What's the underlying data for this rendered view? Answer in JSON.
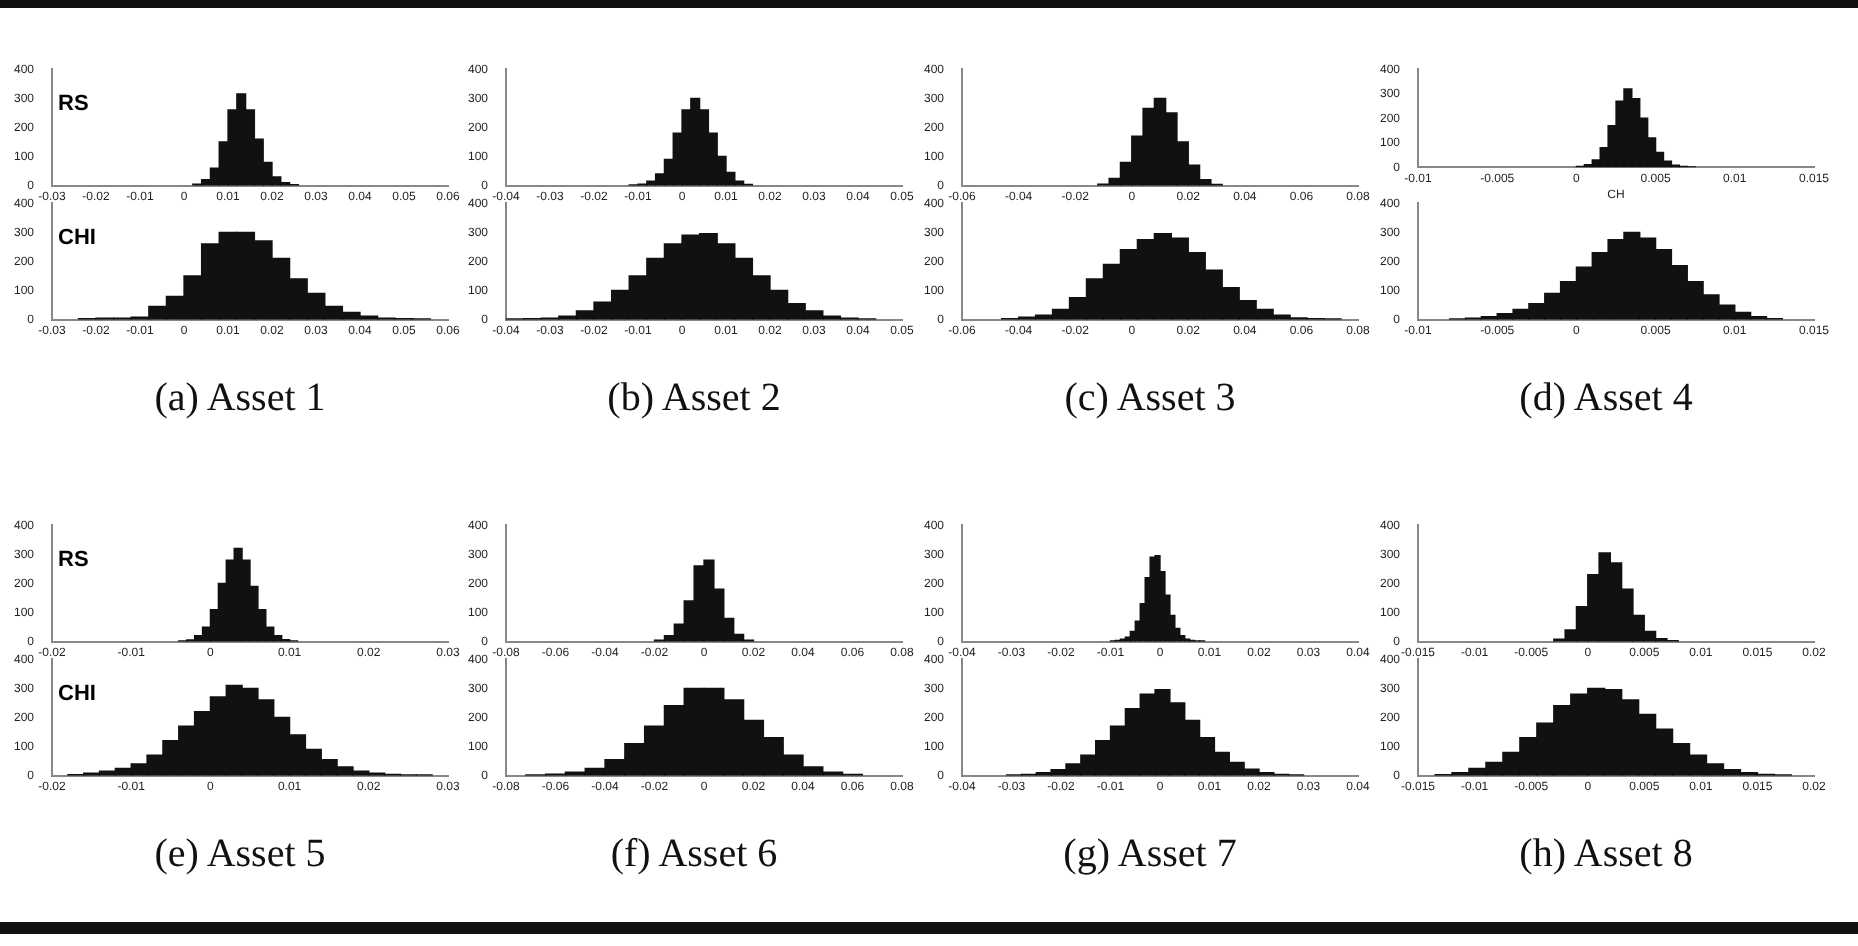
{
  "chart_data": [
    {
      "type": "histogram",
      "title": "RS",
      "bins": [
        0.002,
        0.004,
        0.006,
        0.008,
        0.01,
        0.012,
        0.014,
        0.016,
        0.018,
        0.02,
        0.022,
        0.024,
        0.026
      ],
      "values": [
        5,
        20,
        60,
        150,
        260,
        315,
        260,
        160,
        80,
        30,
        10,
        3
      ],
      "color": "#111111",
      "xlim": [
        -0.03,
        0.06
      ],
      "xticks": [
        -0.03,
        -0.02,
        -0.01,
        0,
        0.01,
        0.02,
        0.03,
        0.04,
        0.05,
        0.06
      ],
      "ylim": [
        0,
        400
      ],
      "yticks": [
        0,
        100,
        200,
        300,
        400
      ],
      "grid": false,
      "legend": false
    },
    {
      "type": "histogram",
      "title": "CHI",
      "bins": [
        -0.024,
        -0.02,
        -0.016,
        -0.012,
        -0.008,
        -0.004,
        0,
        0.004,
        0.008,
        0.012,
        0.016,
        0.02,
        0.024,
        0.028,
        0.032,
        0.036,
        0.04,
        0.044,
        0.048,
        0.052,
        0.056
      ],
      "values": [
        3,
        5,
        5,
        8,
        45,
        80,
        150,
        260,
        300,
        300,
        270,
        210,
        140,
        90,
        45,
        25,
        12,
        5,
        3,
        2
      ],
      "color": "#111111",
      "xlim": [
        -0.03,
        0.06
      ],
      "xticks": [
        -0.03,
        -0.02,
        -0.01,
        0,
        0.01,
        0.02,
        0.03,
        0.04,
        0.05,
        0.06
      ],
      "ylim": [
        0,
        400
      ],
      "yticks": [
        0,
        100,
        200,
        300,
        400
      ],
      "grid": false,
      "legend": false,
      "annotations": [
        "(a)  Asset 1"
      ]
    },
    {
      "type": "histogram",
      "bins": [
        -0.012,
        -0.01,
        -0.008,
        -0.006,
        -0.004,
        -0.002,
        0,
        0.002,
        0.004,
        0.006,
        0.008,
        0.01,
        0.012,
        0.014,
        0.016
      ],
      "values": [
        2,
        5,
        15,
        40,
        90,
        180,
        260,
        300,
        260,
        180,
        100,
        45,
        15,
        4
      ],
      "color": "#111111",
      "xlim": [
        -0.04,
        0.05
      ],
      "xticks": [
        -0.04,
        -0.03,
        -0.02,
        -0.01,
        0,
        0.01,
        0.02,
        0.03,
        0.04,
        0.05
      ],
      "ylim": [
        0,
        400
      ],
      "yticks": [
        0,
        100,
        200,
        300,
        400
      ],
      "grid": false,
      "legend": false
    },
    {
      "type": "histogram",
      "bins": [
        -0.04,
        -0.036,
        -0.032,
        -0.028,
        -0.024,
        -0.02,
        -0.016,
        -0.012,
        -0.008,
        -0.004,
        0,
        0.004,
        0.008,
        0.012,
        0.016,
        0.02,
        0.024,
        0.028,
        0.032,
        0.036,
        0.04,
        0.044
      ],
      "values": [
        2,
        3,
        5,
        12,
        30,
        60,
        100,
        150,
        210,
        260,
        290,
        295,
        260,
        210,
        150,
        100,
        55,
        30,
        12,
        5,
        2
      ],
      "color": "#111111",
      "xlim": [
        -0.04,
        0.05
      ],
      "xticks": [
        -0.04,
        -0.03,
        -0.02,
        -0.01,
        0,
        0.01,
        0.02,
        0.03,
        0.04,
        0.05
      ],
      "ylim": [
        0,
        400
      ],
      "yticks": [
        0,
        100,
        200,
        300,
        400
      ],
      "grid": false,
      "legend": false,
      "annotations": [
        "(b)  Asset 2"
      ]
    },
    {
      "type": "histogram",
      "bins": [
        -0.012,
        -0.008,
        -0.004,
        0,
        0.004,
        0.008,
        0.012,
        0.016,
        0.02,
        0.024,
        0.028,
        0.032
      ],
      "values": [
        5,
        25,
        80,
        170,
        265,
        300,
        250,
        150,
        70,
        20,
        4
      ],
      "color": "#111111",
      "xlim": [
        -0.06,
        0.08
      ],
      "xticks": [
        -0.06,
        -0.04,
        -0.02,
        0,
        0.02,
        0.04,
        0.06,
        0.08
      ],
      "ylim": [
        0,
        400
      ],
      "yticks": [
        0,
        100,
        200,
        300,
        400
      ],
      "grid": false,
      "legend": false
    },
    {
      "type": "histogram",
      "bins": [
        -0.046,
        -0.04,
        -0.034,
        -0.028,
        -0.022,
        -0.016,
        -0.01,
        -0.004,
        0.002,
        0.008,
        0.014,
        0.02,
        0.026,
        0.032,
        0.038,
        0.044,
        0.05,
        0.056,
        0.062,
        0.068,
        0.074
      ],
      "values": [
        3,
        8,
        15,
        35,
        75,
        140,
        190,
        240,
        275,
        295,
        280,
        230,
        170,
        110,
        65,
        35,
        15,
        6,
        3,
        2
      ],
      "color": "#111111",
      "xlim": [
        -0.06,
        0.08
      ],
      "xticks": [
        -0.06,
        -0.04,
        -0.02,
        0,
        0.02,
        0.04,
        0.06,
        0.08
      ],
      "ylim": [
        0,
        400
      ],
      "yticks": [
        0,
        100,
        200,
        300,
        400
      ],
      "grid": false,
      "legend": false,
      "annotations": [
        "(c)  Asset 3"
      ]
    },
    {
      "type": "histogram",
      "xlabel": "CH",
      "bins": [
        0,
        0.0005,
        0.001,
        0.0015,
        0.002,
        0.0025,
        0.003,
        0.0035,
        0.004,
        0.0045,
        0.005,
        0.0055,
        0.006,
        0.0065,
        0.007,
        0.0075
      ],
      "values": [
        3,
        10,
        30,
        80,
        170,
        270,
        320,
        280,
        200,
        120,
        60,
        25,
        8,
        3,
        1
      ],
      "color": "#111111",
      "xlim": [
        -0.01,
        0.015
      ],
      "xticks": [
        -0.01,
        -0.005,
        0,
        0.005,
        0.01,
        0.015
      ],
      "ylim": [
        0,
        400
      ],
      "yticks": [
        0,
        100,
        200,
        300,
        400
      ],
      "grid": false,
      "legend": false
    },
    {
      "type": "histogram",
      "bins": [
        -0.008,
        -0.007,
        -0.006,
        -0.005,
        -0.004,
        -0.003,
        -0.002,
        -0.001,
        0,
        0.001,
        0.002,
        0.003,
        0.004,
        0.005,
        0.006,
        0.007,
        0.008,
        0.009,
        0.01,
        0.011,
        0.012,
        0.013
      ],
      "values": [
        2,
        5,
        10,
        20,
        35,
        55,
        90,
        130,
        180,
        230,
        275,
        300,
        280,
        240,
        185,
        130,
        85,
        50,
        25,
        10,
        3
      ],
      "color": "#111111",
      "xlim": [
        -0.01,
        0.015
      ],
      "xticks": [
        -0.01,
        -0.005,
        0,
        0.005,
        0.01,
        0.015
      ],
      "ylim": [
        0,
        400
      ],
      "yticks": [
        0,
        100,
        200,
        300,
        400
      ],
      "grid": false,
      "legend": false,
      "annotations": [
        "(d)  Asset 4"
      ]
    },
    {
      "type": "histogram",
      "title": "RS",
      "bins": [
        -0.004,
        -0.003,
        -0.002,
        -0.001,
        0,
        0.001,
        0.002,
        0.003,
        0.004,
        0.005,
        0.006,
        0.007,
        0.008,
        0.009,
        0.01,
        0.011
      ],
      "values": [
        2,
        6,
        20,
        50,
        110,
        200,
        280,
        320,
        280,
        190,
        110,
        50,
        20,
        7,
        2
      ],
      "color": "#111111",
      "xlim": [
        -0.02,
        0.03
      ],
      "xticks": [
        -0.02,
        -0.01,
        0,
        0.01,
        0.02,
        0.03
      ],
      "ylim": [
        0,
        400
      ],
      "yticks": [
        0,
        100,
        200,
        300,
        400
      ],
      "grid": false,
      "legend": false
    },
    {
      "type": "histogram",
      "title": "CHI",
      "bins": [
        -0.018,
        -0.016,
        -0.014,
        -0.012,
        -0.01,
        -0.008,
        -0.006,
        -0.004,
        -0.002,
        0,
        0.002,
        0.004,
        0.006,
        0.008,
        0.01,
        0.012,
        0.014,
        0.016,
        0.018,
        0.02,
        0.022,
        0.024,
        0.026,
        0.028
      ],
      "values": [
        3,
        8,
        15,
        25,
        40,
        70,
        120,
        170,
        220,
        270,
        310,
        300,
        260,
        200,
        140,
        90,
        55,
        30,
        15,
        8,
        4,
        2,
        2
      ],
      "color": "#111111",
      "xlim": [
        -0.02,
        0.03
      ],
      "xticks": [
        -0.02,
        -0.01,
        0,
        0.01,
        0.02,
        0.03
      ],
      "ylim": [
        0,
        400
      ],
      "yticks": [
        0,
        100,
        200,
        300,
        400
      ],
      "grid": false,
      "legend": false,
      "annotations": [
        "(e)  Asset 5"
      ]
    },
    {
      "type": "histogram",
      "bins": [
        -0.02,
        -0.016,
        -0.012,
        -0.008,
        -0.004,
        0,
        0.004,
        0.008,
        0.012,
        0.016,
        0.02
      ],
      "values": [
        5,
        20,
        60,
        140,
        260,
        280,
        180,
        80,
        25,
        5
      ],
      "color": "#111111",
      "xlim": [
        -0.08,
        0.08
      ],
      "xticks": [
        -0.08,
        -0.06,
        -0.04,
        -0.02,
        0,
        0.02,
        0.04,
        0.06,
        0.08
      ],
      "ylim": [
        0,
        400
      ],
      "yticks": [
        0,
        100,
        200,
        300,
        400
      ],
      "grid": false,
      "legend": false
    },
    {
      "type": "histogram",
      "bins": [
        -0.072,
        -0.064,
        -0.056,
        -0.048,
        -0.04,
        -0.032,
        -0.024,
        -0.016,
        -0.008,
        0,
        0.008,
        0.016,
        0.024,
        0.032,
        0.04,
        0.048,
        0.056,
        0.064
      ],
      "values": [
        2,
        5,
        12,
        25,
        55,
        110,
        170,
        240,
        300,
        300,
        260,
        190,
        130,
        70,
        30,
        12,
        4
      ],
      "color": "#111111",
      "xlim": [
        -0.08,
        0.08
      ],
      "xticks": [
        -0.08,
        -0.06,
        -0.04,
        -0.02,
        0,
        0.02,
        0.04,
        0.06,
        0.08
      ],
      "ylim": [
        0,
        400
      ],
      "yticks": [
        0,
        100,
        200,
        300,
        400
      ],
      "grid": false,
      "legend": false,
      "annotations": [
        "(f)  Asset 6"
      ]
    },
    {
      "type": "histogram",
      "bins": [
        -0.01,
        -0.009,
        -0.008,
        -0.007,
        -0.006,
        -0.005,
        -0.004,
        -0.003,
        -0.002,
        -0.001,
        0,
        0.001,
        0.002,
        0.003,
        0.004,
        0.005,
        0.006,
        0.007,
        0.008,
        0.009
      ],
      "values": [
        2,
        4,
        8,
        15,
        35,
        70,
        130,
        220,
        290,
        295,
        240,
        160,
        90,
        45,
        20,
        8,
        4,
        2,
        2
      ],
      "color": "#111111",
      "xlim": [
        -0.04,
        0.04
      ],
      "xticks": [
        -0.04,
        -0.03,
        -0.02,
        -0.01,
        0,
        0.01,
        0.02,
        0.03,
        0.04
      ],
      "ylim": [
        0,
        400
      ],
      "yticks": [
        0,
        100,
        200,
        300,
        400
      ],
      "grid": false,
      "legend": false
    },
    {
      "type": "histogram",
      "bins": [
        -0.031,
        -0.028,
        -0.025,
        -0.022,
        -0.019,
        -0.016,
        -0.013,
        -0.01,
        -0.007,
        -0.004,
        -0.001,
        0.002,
        0.005,
        0.008,
        0.011,
        0.014,
        0.017,
        0.02,
        0.023,
        0.026,
        0.029
      ],
      "values": [
        2,
        4,
        10,
        20,
        40,
        70,
        120,
        170,
        230,
        280,
        295,
        250,
        190,
        130,
        80,
        45,
        22,
        10,
        4,
        2
      ],
      "color": "#111111",
      "xlim": [
        -0.04,
        0.04
      ],
      "xticks": [
        -0.04,
        -0.03,
        -0.02,
        -0.01,
        0,
        0.01,
        0.02,
        0.03,
        0.04
      ],
      "ylim": [
        0,
        400
      ],
      "yticks": [
        0,
        100,
        200,
        300,
        400
      ],
      "grid": false,
      "legend": false,
      "annotations": [
        "(g)  Asset 7"
      ]
    },
    {
      "type": "histogram",
      "bins": [
        -0.003,
        -0.002,
        -0.001,
        0,
        0.001,
        0.002,
        0.003,
        0.004,
        0.005,
        0.006,
        0.007,
        0.008
      ],
      "values": [
        8,
        40,
        120,
        230,
        305,
        270,
        180,
        90,
        35,
        10,
        3
      ],
      "color": "#111111",
      "xlim": [
        -0.015,
        0.02
      ],
      "xticks": [
        -0.015,
        -0.01,
        -0.005,
        0,
        0.005,
        0.01,
        0.015,
        0.02
      ],
      "ylim": [
        0,
        400
      ],
      "yticks": [
        0,
        100,
        200,
        300,
        400
      ],
      "grid": false,
      "legend": false
    },
    {
      "type": "histogram",
      "bins": [
        -0.0135,
        -0.012,
        -0.0105,
        -0.009,
        -0.0075,
        -0.006,
        -0.0045,
        -0.003,
        -0.0015,
        0,
        0.0015,
        0.003,
        0.0045,
        0.006,
        0.0075,
        0.009,
        0.0105,
        0.012,
        0.0135,
        0.015,
        0.0165,
        0.018
      ],
      "values": [
        3,
        10,
        25,
        45,
        80,
        130,
        180,
        240,
        280,
        300,
        295,
        260,
        210,
        160,
        110,
        70,
        40,
        20,
        10,
        4,
        2
      ],
      "color": "#111111",
      "xlim": [
        -0.015,
        0.02
      ],
      "xticks": [
        -0.015,
        -0.01,
        -0.005,
        0,
        0.005,
        0.01,
        0.015,
        0.02
      ],
      "ylim": [
        0,
        400
      ],
      "yticks": [
        0,
        100,
        200,
        300,
        400
      ],
      "grid": false,
      "legend": false,
      "annotations": [
        "(h)  Asset 8"
      ]
    }
  ]
}
